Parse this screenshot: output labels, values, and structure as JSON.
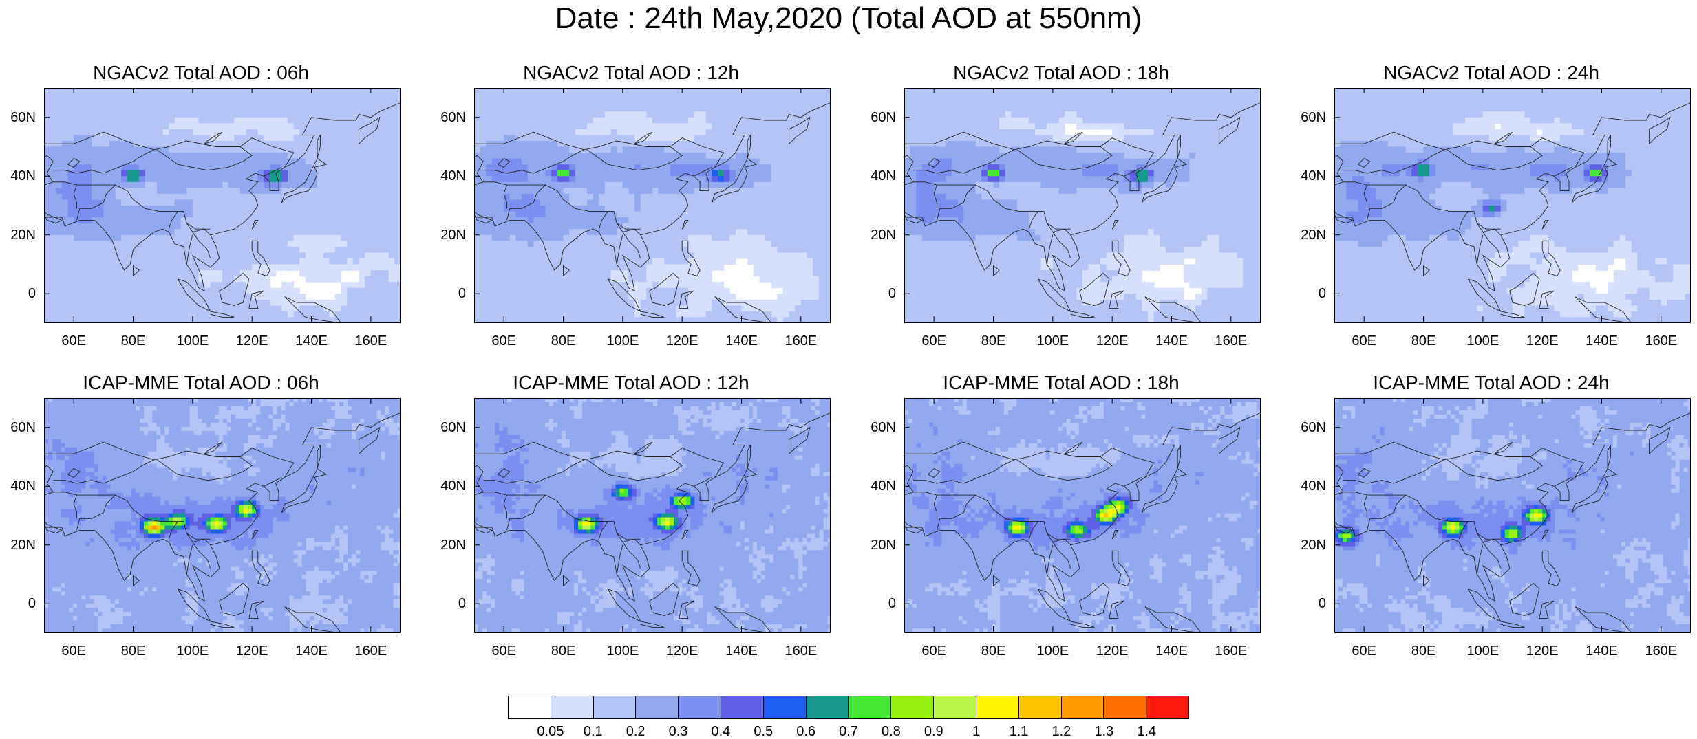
{
  "title": "Date : 24th May,2020 (Total AOD at 550nm)",
  "panels": [
    {
      "title": "NGACv2 Total AOD : 06h",
      "model": "ngac",
      "hot": [
        [
          80,
          40,
          0.85
        ],
        [
          128,
          40,
          0.85
        ]
      ]
    },
    {
      "title": "NGACv2 Total AOD : 12h",
      "model": "ngac",
      "hot": [
        [
          80,
          41,
          0.85
        ],
        [
          133,
          40,
          0.7
        ]
      ]
    },
    {
      "title": "NGACv2 Total AOD : 18h",
      "model": "ngac",
      "hot": [
        [
          80,
          41,
          0.85
        ],
        [
          130,
          40,
          0.85
        ]
      ]
    },
    {
      "title": "NGACv2 Total AOD : 24h",
      "model": "ngac",
      "hot": [
        [
          80,
          42,
          0.8
        ],
        [
          138,
          41,
          0.8
        ],
        [
          103,
          29,
          0.75
        ]
      ]
    },
    {
      "title": "ICAP-MME Total AOD : 06h",
      "model": "icap",
      "hot": [
        [
          87,
          26,
          1.25
        ],
        [
          118,
          32,
          1.05
        ],
        [
          108,
          27,
          1.0
        ],
        [
          95,
          28,
          0.9
        ]
      ]
    },
    {
      "title": "ICAP-MME Total AOD : 12h",
      "model": "icap",
      "hot": [
        [
          88,
          27,
          1.05
        ],
        [
          115,
          28,
          1.05
        ],
        [
          120,
          35,
          0.95
        ],
        [
          100,
          38,
          0.85
        ]
      ]
    },
    {
      "title": "ICAP-MME Total AOD : 18h",
      "model": "icap",
      "hot": [
        [
          88,
          26,
          1.05
        ],
        [
          118,
          30,
          1.1
        ],
        [
          122,
          33,
          0.95
        ],
        [
          108,
          25,
          0.9
        ]
      ]
    },
    {
      "title": "ICAP-MME Total AOD : 24h",
      "model": "icap",
      "hot": [
        [
          90,
          26,
          1.05
        ],
        [
          118,
          30,
          1.05
        ],
        [
          110,
          24,
          0.9
        ],
        [
          54,
          23,
          0.85
        ]
      ]
    }
  ],
  "map": {
    "lon_range": [
      50,
      170
    ],
    "lat_range": [
      -10,
      70
    ],
    "lat_ticks": [
      {
        "value": 60,
        "label": "60N"
      },
      {
        "value": 40,
        "label": "40N"
      },
      {
        "value": 20,
        "label": "20N"
      },
      {
        "value": 0,
        "label": "0"
      }
    ],
    "lon_ticks": [
      {
        "value": 60,
        "label": "60E"
      },
      {
        "value": 80,
        "label": "80E"
      },
      {
        "value": 100,
        "label": "100E"
      },
      {
        "value": 120,
        "label": "120E"
      },
      {
        "value": 140,
        "label": "140E"
      },
      {
        "value": 160,
        "label": "160E"
      }
    ]
  },
  "colorbar": {
    "levels": [
      "0.05",
      "0.1",
      "0.2",
      "0.3",
      "0.4",
      "0.5",
      "0.6",
      "0.7",
      "0.8",
      "0.9",
      "1",
      "1.1",
      "1.2",
      "1.3",
      "1.4"
    ],
    "colors": [
      "#ffffff",
      "#d6dffb",
      "#b4c4f6",
      "#92a9f0",
      "#7a8ff0",
      "#6060e6",
      "#1e5ef0",
      "#17998e",
      "#48e836",
      "#96f20e",
      "#b8f54a",
      "#fff500",
      "#ffc400",
      "#ff9a00",
      "#ff6e00",
      "#ff1a10"
    ]
  }
}
